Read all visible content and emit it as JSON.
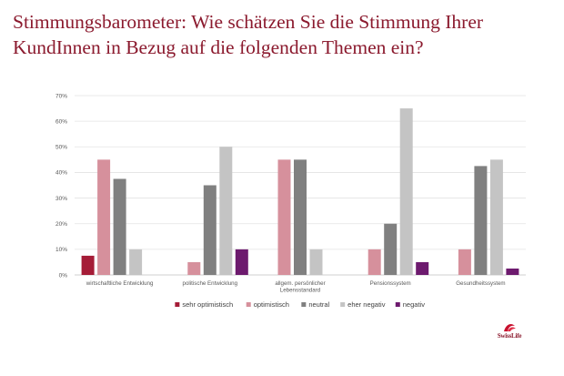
{
  "title": {
    "line1": "Stimmungsbarometer: Wie schätzen Sie die Stimmung Ihrer",
    "line2": "KundInnen in Bezug auf die folgenden Themen ein?"
  },
  "logo": {
    "text": "SwissLife"
  },
  "chart_data": {
    "type": "bar",
    "title": "",
    "xlabel": "",
    "ylabel": "",
    "ylim": [
      0,
      70
    ],
    "yticks": [
      "0%",
      "10%",
      "20%",
      "30%",
      "40%",
      "50%",
      "60%",
      "70%"
    ],
    "grid": true,
    "legend": "bottom",
    "categories": [
      [
        "wirtschaftliche Entwicklung"
      ],
      [
        "politische Entwicklung"
      ],
      [
        "allgem. persönlicher",
        "Lebensstandard"
      ],
      [
        "Pensionssystem"
      ],
      [
        "Gesundheitssystem"
      ]
    ],
    "series": [
      {
        "name": "sehr optimistisch",
        "color": "#a51c37",
        "values": [
          7.5,
          0,
          0,
          0,
          0
        ]
      },
      {
        "name": "optimistisch",
        "color": "#d6909c",
        "values": [
          45,
          5,
          45,
          10,
          10
        ]
      },
      {
        "name": "neutral",
        "color": "#808080",
        "values": [
          37.5,
          35,
          45,
          20,
          42.5
        ]
      },
      {
        "name": "eher negativ",
        "color": "#c4c4c4",
        "values": [
          10,
          50,
          10,
          65,
          45
        ]
      },
      {
        "name": "negativ",
        "color": "#6d1a6e",
        "values": [
          0,
          10,
          0,
          5,
          2.5
        ]
      }
    ]
  }
}
